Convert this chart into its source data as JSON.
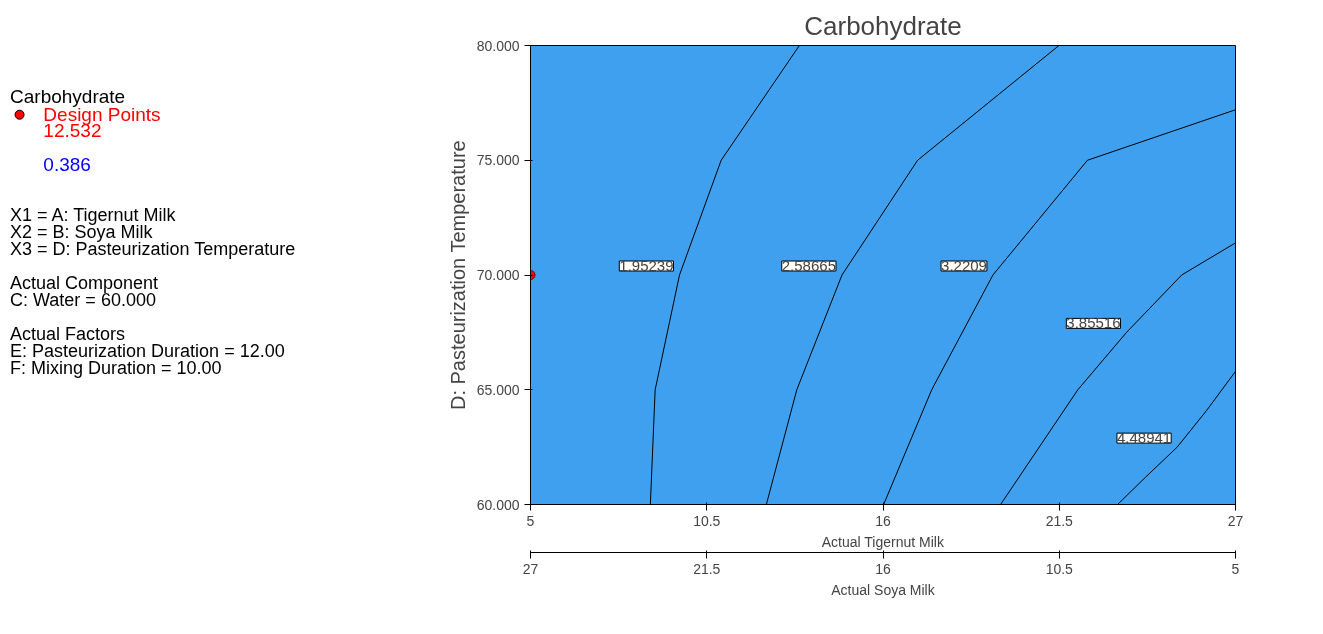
{
  "chart_data": {
    "type": "line",
    "title": "Carbohydrate",
    "xlabel": "Actual Tigernut Milk",
    "x2label": "Actual Soya Milk",
    "ylabel": "D: Pasteurization Temperature",
    "xlim": [
      5,
      27
    ],
    "xticks": [
      5,
      10.5,
      16,
      21.5,
      27
    ],
    "x2lim": [
      27,
      5
    ],
    "x2ticks": [
      27,
      21.5,
      16,
      10.5,
      5
    ],
    "ylim": [
      60,
      80
    ],
    "yticks": [
      {
        "value": 60,
        "label": "60.000"
      },
      {
        "value": 65,
        "label": "65.000"
      },
      {
        "value": 70,
        "label": "70.000"
      },
      {
        "value": 75,
        "label": "75.000"
      },
      {
        "value": 80,
        "label": "80.000"
      }
    ],
    "grid": false,
    "legend": "left",
    "series": [
      {
        "name": "1.95239",
        "color": "#000000",
        "x": [
          8.74,
          8.89,
          9.65,
          10.95,
          13.39
        ],
        "values": [
          60,
          65,
          70,
          75,
          80
        ]
      },
      {
        "name": "2.58665",
        "color": "#000000",
        "x": [
          12.36,
          13.31,
          14.72,
          17.08,
          21.49
        ],
        "values": [
          60,
          65,
          70,
          75,
          80
        ]
      },
      {
        "name": "3.2209",
        "color": "#000000",
        "x": [
          16.02,
          17.52,
          19.43,
          22.38,
          27
        ],
        "values": [
          60,
          65,
          70,
          75,
          77.2
        ]
      },
      {
        "name": "3.85516",
        "color": "#000000",
        "x": [
          19.67,
          22.08,
          23.6,
          25.32,
          27
        ],
        "values": [
          60,
          65,
          67.5,
          70,
          71.4
        ]
      },
      {
        "name": "4.48941",
        "color": "#000000",
        "x": [
          23.32,
          24.2,
          25.18,
          26.1,
          27
        ],
        "values": [
          60,
          61.2,
          62.5,
          64.1,
          65.8
        ]
      },
      {
        "name": "Design Points",
        "type": "scatter",
        "marker": "circle",
        "color": "#ff0000",
        "x": [
          5
        ],
        "values": [
          70
        ]
      }
    ],
    "annotations": [
      "Carbohydrate",
      "12.532",
      "0.386",
      "X1 = A: Tigernut Milk",
      "X2 = B: Soya Milk",
      "X3 = D: Pasteurization Temperature",
      "Actual Component",
      "C: Water = 60.000",
      "Actual Factors",
      "E: Pasteurization Duration = 12.00",
      "F: Mixing Duration = 10.00"
    ]
  }
}
